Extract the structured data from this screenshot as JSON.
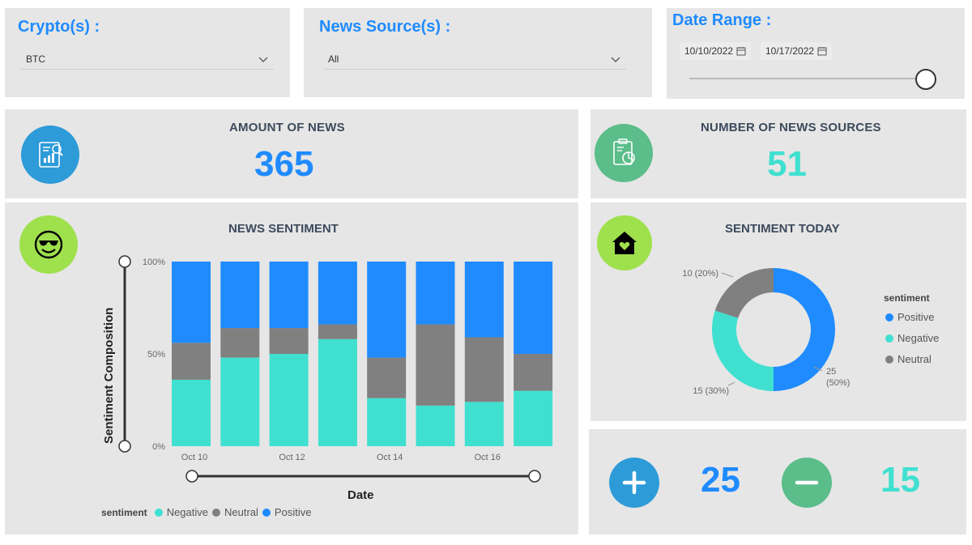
{
  "filters": {
    "crypto": {
      "title": "Crypto(s) :",
      "value": "BTC"
    },
    "news_source": {
      "title": "News Source(s) :",
      "value": "All"
    },
    "date_range": {
      "title": "Date Range :",
      "start": "10/10/2022",
      "end": "10/17/2022"
    }
  },
  "kpis": {
    "amount_of_news": {
      "title": "AMOUNT OF NEWS",
      "value": "365",
      "color": "#1f8bff",
      "icon": "report-chart-icon"
    },
    "number_of_sources": {
      "title": "NUMBER OF NEWS SOURCES",
      "value": "51",
      "color": "#40e0d0",
      "icon": "clipboard-pie-icon"
    }
  },
  "news_sentiment": {
    "title": "NEWS SENTIMENT",
    "icon": "sunglasses-smiley-icon",
    "chart_data": {
      "type": "bar",
      "stacked": "100%",
      "categories": [
        "Oct 10",
        "Oct 11",
        "Oct 12",
        "Oct 13",
        "Oct 14",
        "Oct 15",
        "Oct 16",
        "Oct 17"
      ],
      "x_tick_labels": [
        "Oct 10",
        "Oct 12",
        "Oct 14",
        "Oct 16"
      ],
      "series": [
        {
          "name": "Negative",
          "color": "#40e0d0",
          "values": [
            36,
            48,
            50,
            58,
            26,
            22,
            24,
            30
          ]
        },
        {
          "name": "Neutral",
          "color": "#808080",
          "values": [
            20,
            16,
            14,
            8,
            22,
            44,
            35,
            20
          ]
        },
        {
          "name": "Positive",
          "color": "#1f8bff",
          "values": [
            44,
            36,
            36,
            34,
            52,
            34,
            41,
            50
          ]
        }
      ],
      "y_tick_labels": [
        "100%",
        "50%",
        "0%"
      ],
      "ylim": [
        0,
        100
      ],
      "xlabel": "Date",
      "ylabel": "Sentiment Composition",
      "legend_title": "sentiment",
      "legend_position": "bottom-left"
    }
  },
  "sentiment_today": {
    "title": "SENTIMENT TODAY",
    "icon": "house-heart-icon",
    "chart_data": {
      "type": "pie",
      "donut": true,
      "slices": [
        {
          "name": "Positive",
          "value": 25,
          "percent": 50,
          "color": "#1f8bff",
          "label_line1": "25",
          "label_line2": "(50%)"
        },
        {
          "name": "Negative",
          "value": 15,
          "percent": 30,
          "color": "#40e0d0",
          "label_line1": "15 (30%)"
        },
        {
          "name": "Neutral",
          "value": 10,
          "percent": 20,
          "color": "#808080",
          "label_line1": "10 (20%)"
        }
      ],
      "legend_title": "sentiment",
      "legend_position": "right"
    }
  },
  "counts": {
    "positive": {
      "value": "25",
      "color": "#1f8bff",
      "icon": "plus-icon"
    },
    "negative": {
      "value": "15",
      "color": "#40e0d0",
      "icon": "minus-icon"
    }
  }
}
